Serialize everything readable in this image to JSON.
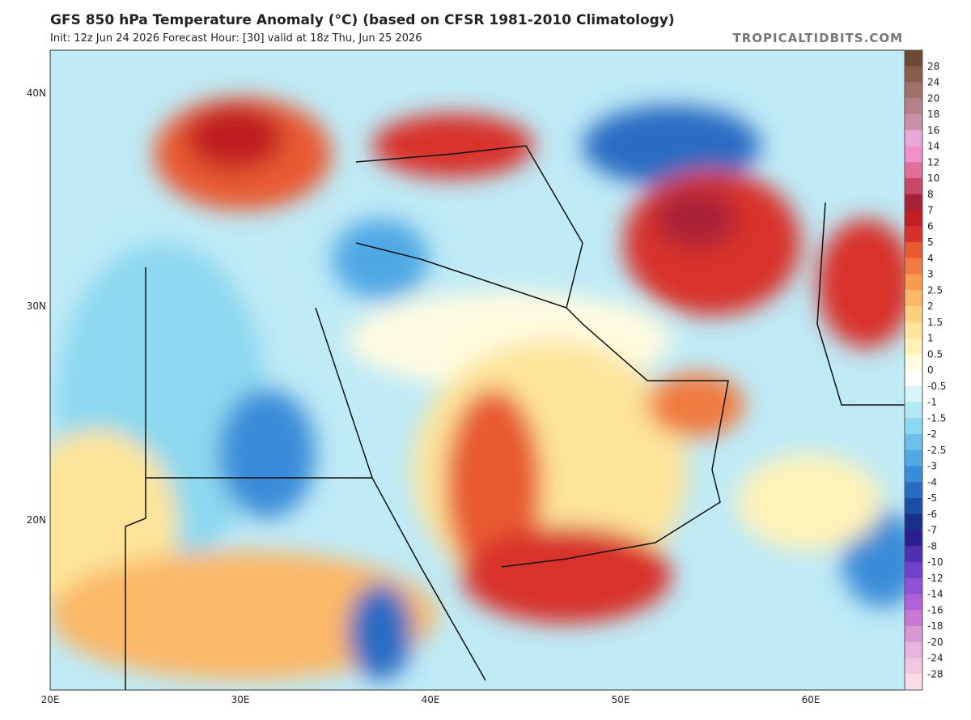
{
  "header": {
    "title": "GFS 850 hPa Temperature Anomaly (°C) (based on CFSR 1981-2010 Climatology)",
    "subtitle": "Init: 12z Jun 24 2026   Forecast Hour: [30]   valid at 18z Thu, Jun 25 2026",
    "brand": "TROPICALTIDBITS.COM"
  },
  "map": {
    "lat_labels": [
      "40N",
      "30N",
      "20N"
    ],
    "lon_labels": [
      "20E",
      "30E",
      "40E",
      "50E",
      "60E"
    ]
  },
  "colorbar": {
    "labels": [
      "28",
      "24",
      "20",
      "18",
      "16",
      "14",
      "12",
      "10",
      "8",
      "7",
      "6",
      "5",
      "4",
      "3",
      "2.5",
      "2",
      "1.5",
      "1",
      "0.5",
      "0",
      "-0.5",
      "-1",
      "-1.5",
      "-2",
      "-2.5",
      "-3",
      "-4",
      "-5",
      "-6",
      "-7",
      "-8",
      "-10",
      "-12",
      "-14",
      "-16",
      "-18",
      "-20",
      "-24",
      "-28"
    ],
    "colors": [
      "#6b4a35",
      "#8b5e4c",
      "#a0706a",
      "#b5808a",
      "#c890a8",
      "#e8a8d8",
      "#f090c8",
      "#e0709a",
      "#c84868",
      "#a82038",
      "#c01f24",
      "#d8302a",
      "#e85a30",
      "#f07a40",
      "#f89a50",
      "#fbb868",
      "#fdd080",
      "#fde49a",
      "#fef2b8",
      "#fffbe0",
      "#ffffff",
      "#d8f4f8",
      "#b0e8f4",
      "#8cd8f0",
      "#6cc0ec",
      "#50a8e4",
      "#3a8cd8",
      "#2a6cc4",
      "#1c4ea8",
      "#18308c",
      "#2a1e90",
      "#5030b0",
      "#7040c8",
      "#9050d8",
      "#b060d8",
      "#c878d0",
      "#d898d4",
      "#e8b4dc",
      "#f0c8e0",
      "#f8dce8"
    ]
  }
}
